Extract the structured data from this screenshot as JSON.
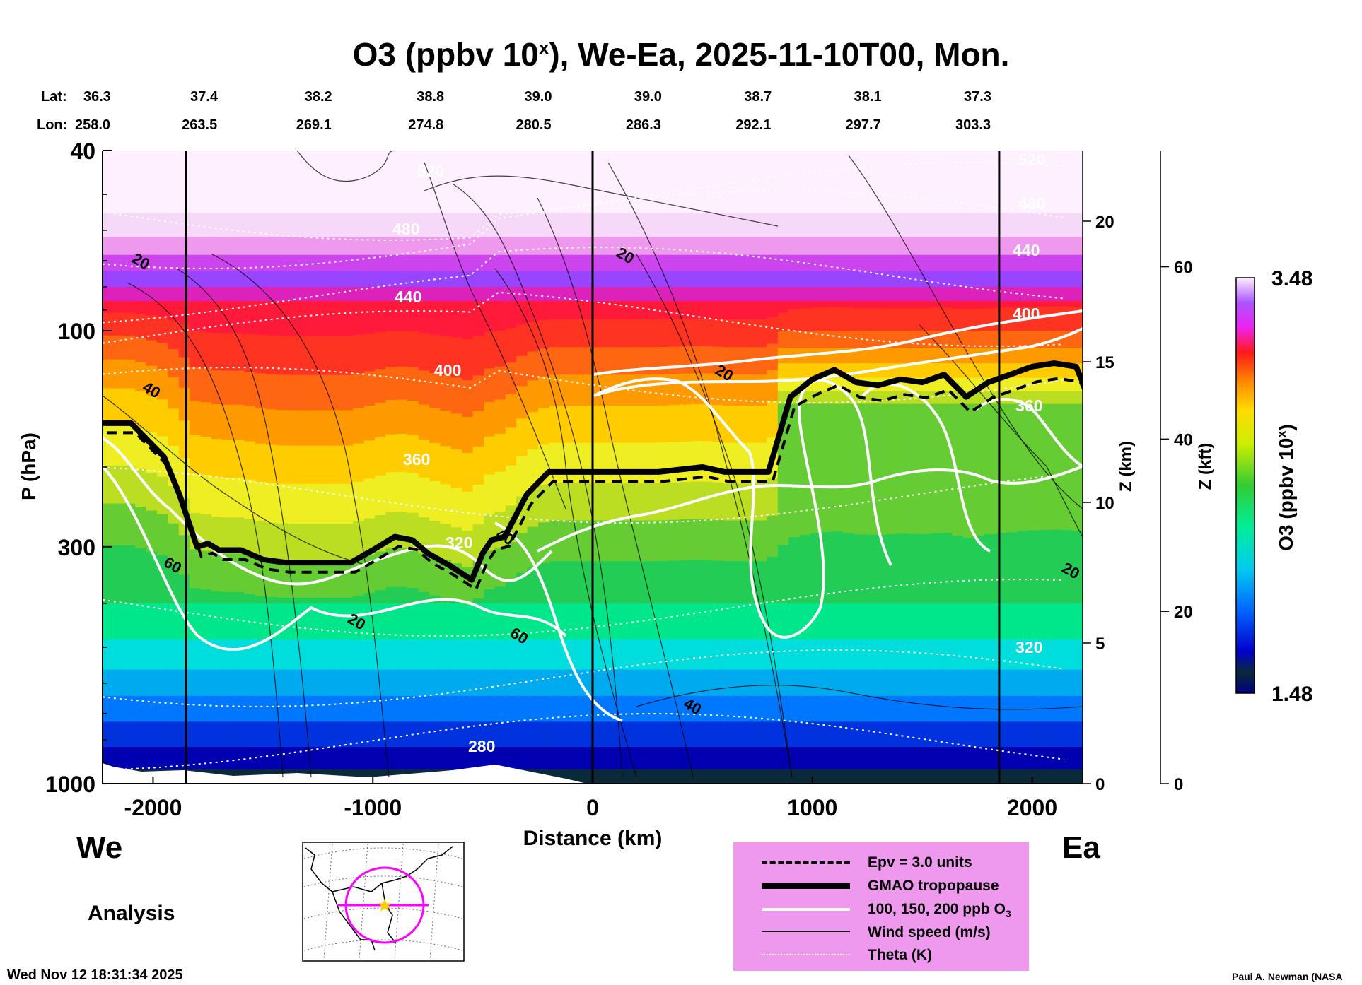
{
  "title": {
    "main": "O3 (ppbv 10",
    "sup": "x",
    "rest": "), We-Ea, 2025-11-10T00, Mon."
  },
  "header": {
    "lat_label": "Lat:",
    "lon_label": "Lon:",
    "lats": [
      "36.3",
      "37.4",
      "38.2",
      "38.8",
      "39.0",
      "39.0",
      "38.7",
      "38.1",
      "37.3"
    ],
    "lons": [
      "258.0",
      "263.5",
      "269.1",
      "274.8",
      "280.5",
      "286.3",
      "292.1",
      "297.7",
      "303.3"
    ]
  },
  "chart_data": {
    "type": "heatmap",
    "title": "O3 (ppbv 10^x), We-Ea, 2025-11-10T00, Mon.",
    "xlabel": "Distance (km)",
    "ylabel": "P (hPa)",
    "xlim": [
      -2230,
      2230
    ],
    "ylim": [
      1000,
      40
    ],
    "x_ticks": [
      -2000,
      -1000,
      0,
      1000,
      2000
    ],
    "x_tick_labels": [
      "-2000",
      "-1000",
      "0",
      "1000",
      "2000"
    ],
    "y_ticks": [
      40,
      100,
      300,
      1000
    ],
    "y_tick_labels": [
      "40",
      "100",
      "300",
      "1000"
    ],
    "z_km_ticks": [
      0,
      5,
      10,
      15,
      20
    ],
    "z_km_tick_labels": [
      "0",
      "5",
      "10",
      "15",
      "20"
    ],
    "z_km_label": "Z (km)",
    "z_kft_ticks": [
      0,
      20,
      40,
      60
    ],
    "z_kft_tick_labels": [
      "0",
      "20",
      "40",
      "60"
    ],
    "z_kft_label": "Z (kft)",
    "vertical_lines_km": [
      -1850,
      0,
      1850
    ],
    "colorbar": {
      "min": 1.48,
      "max": 3.48,
      "min_label": "1.48",
      "max_label": "3.48",
      "label_main": "O3 (ppbv 10",
      "label_sup": "x",
      "label_rest": ")"
    },
    "tropopause_hpa": {
      "x": [
        -2230,
        -2100,
        -1950,
        -1880,
        -1800,
        -1750,
        -1700,
        -1600,
        -1500,
        -1400,
        -1300,
        -1100,
        -1000,
        -900,
        -820,
        -750,
        -650,
        -550,
        -500,
        -460,
        -400,
        -300,
        -200,
        -120,
        0,
        300,
        500,
        600,
        800,
        900,
        1000,
        1100,
        1200,
        1300,
        1400,
        1500,
        1600,
        1700,
        1800,
        1900,
        2000,
        2100,
        2200,
        2230
      ],
      "p": [
        160,
        160,
        190,
        230,
        300,
        295,
        305,
        305,
        320,
        325,
        325,
        325,
        305,
        285,
        290,
        310,
        330,
        355,
        310,
        290,
        285,
        230,
        205,
        205,
        205,
        205,
        200,
        205,
        205,
        140,
        128,
        122,
        130,
        132,
        128,
        130,
        125,
        140,
        130,
        125,
        120,
        118,
        120,
        130
      ]
    },
    "contours_wind_labels": [
      "20",
      "40",
      "60",
      "20",
      "40",
      "60",
      "20",
      "20",
      "40",
      "20"
    ],
    "contours_theta_labels": [
      "520",
      "480",
      "440",
      "400",
      "360",
      "320",
      "280",
      "440",
      "400",
      "360",
      "320",
      "520",
      "480"
    ],
    "legend": [
      {
        "label": "Epv = 3.0 units",
        "style": "dashed"
      },
      {
        "label": "GMAO tropopause",
        "style": "thick"
      },
      {
        "label": "100, 150, 200 ppb O",
        "sub": "3",
        "style": "white"
      },
      {
        "label": "Wind speed (m/s)",
        "style": "thin"
      },
      {
        "label": "Theta (K)",
        "style": "dotted"
      }
    ]
  },
  "sides": {
    "west": "We",
    "east": "Ea"
  },
  "analysis_label": "Analysis",
  "timestamp": "Wed Nov 12 18:31:34 2025",
  "credit": "Paul A. Newman (NASA",
  "colors": {
    "legend_bg": "#ee99ee",
    "map_track": "#ff00ff",
    "map_star": "#ffcc00"
  }
}
